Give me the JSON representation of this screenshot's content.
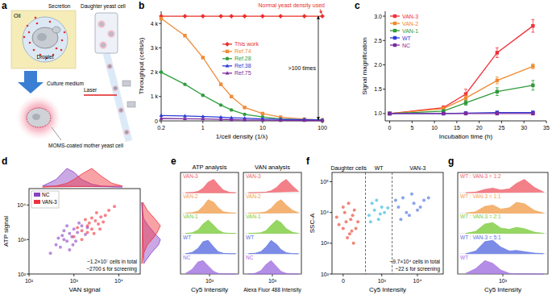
{
  "diagram": {
    "panel": "a",
    "labels": {
      "oil": "Oil",
      "secretion": "Secretion",
      "droplet": "Droplet",
      "daughter": "Daughter yeast cell",
      "medium": "Culture medium",
      "mother": "MOMS-coated mother yeast cell",
      "laser": "Laser"
    }
  },
  "chart_data": [
    {
      "panel": "b",
      "type": "line",
      "x_label": "1/cell density (1/λ)",
      "y_label": "Throughput (cells/s)",
      "log": "x",
      "xlim": [
        0.2,
        100
      ],
      "ylim": [
        0,
        4500
      ],
      "xticks": [
        0.2,
        1,
        10,
        100
      ],
      "yticks": [
        0,
        {
          "value": 1000,
          "label": "1 k"
        },
        {
          "value": 2000,
          "label": "2 k"
        },
        {
          "value": 3000,
          "label": "3 k"
        },
        {
          "value": 4000,
          "label": "4 k"
        }
      ],
      "legend": "center",
      "x": [
        0.2,
        0.5,
        1,
        2,
        3,
        5,
        10,
        20,
        50,
        100
      ],
      "series": [
        {
          "name": "This work",
          "color": "#e8302a",
          "marker": "diamond",
          "values": [
            4300,
            4300,
            4300,
            4300,
            4300,
            4300,
            4300,
            4300,
            4300,
            4300
          ]
        },
        {
          "name": "Ref.74",
          "color": "#f08c3a",
          "marker": "square",
          "values": [
            4200,
            3500,
            2600,
            1500,
            1000,
            550,
            300,
            150,
            70,
            40
          ]
        },
        {
          "name": "Ref.28",
          "color": "#2e9e3e",
          "marker": "circle",
          "values": [
            2000,
            1500,
            1050,
            650,
            450,
            270,
            160,
            80,
            40,
            20
          ]
        },
        {
          "name": "Ref.38",
          "color": "#2c3cd6",
          "marker": "triangle",
          "values": [
            220,
            200,
            180,
            150,
            130,
            110,
            80,
            60,
            50,
            40
          ]
        },
        {
          "name": "Ref.75",
          "color": "#7b2c9e",
          "marker": "triangle",
          "values": [
            100,
            90,
            80,
            60,
            50,
            40,
            30,
            20,
            15,
            10
          ]
        }
      ],
      "annotations": [
        {
          "text": "Normal yeast density used",
          "x": 100,
          "y": 4300
        },
        {
          "text": ">100 times",
          "x": 100,
          "y_from": 40,
          "y_to": 4300
        }
      ]
    },
    {
      "panel": "c",
      "type": "line",
      "x_label": "Incubation time (h)",
      "y_label": "Signal magnification",
      "xlim": [
        -1,
        35
      ],
      "ylim": [
        0.85,
        3.1
      ],
      "xticks": [
        0,
        5,
        10,
        15,
        20,
        25,
        30,
        35
      ],
      "yticks": [
        {
          "value": 1,
          "label": "1.0"
        },
        1.5,
        {
          "value": 2,
          "label": "2.0"
        },
        2.5,
        {
          "value": 3,
          "label": "3.0"
        }
      ],
      "legend": "top-left",
      "x": [
        0,
        12,
        17,
        24,
        32
      ],
      "series": [
        {
          "name": "VAN-3",
          "color": "#f0303a",
          "marker": "square",
          "values": [
            1,
            1.12,
            1.4,
            2.25,
            2.8
          ],
          "errors": [
            0.02,
            0.04,
            0.1,
            0.1,
            0.13
          ]
        },
        {
          "name": "VAN-2",
          "color": "#f08a30",
          "marker": "square",
          "values": [
            1,
            1.1,
            1.32,
            1.68,
            1.97
          ],
          "errors": [
            0.02,
            0.03,
            0.06,
            0.07,
            0.05
          ]
        },
        {
          "name": "VAN-1",
          "color": "#2f9a3a",
          "marker": "square",
          "values": [
            1,
            1.05,
            1.22,
            1.45,
            1.58
          ],
          "errors": [
            0.02,
            0.03,
            0.05,
            0.08,
            0.1
          ]
        },
        {
          "name": "WT",
          "color": "#2c3cd6",
          "marker": "square",
          "values": [
            1,
            1,
            1.01,
            1.02,
            1.02
          ],
          "errors": [
            0.01,
            0.02,
            0.02,
            0.03,
            0.03
          ]
        },
        {
          "name": "NC",
          "color": "#7b2c9e",
          "marker": "square",
          "values": [
            1,
            1,
            1,
            1,
            1
          ],
          "errors": [
            0.01,
            0.01,
            0.01,
            0.02,
            0.02
          ]
        }
      ]
    },
    {
      "panel": "d",
      "type": "scatter",
      "x_label": "VAN signal",
      "y_label": "ATP signal",
      "log": true,
      "xlim": [
        100,
        30000
      ],
      "ylim": [
        100,
        30000
      ],
      "xticks": [
        {
          "value": 100,
          "label": "10²"
        },
        {
          "value": 1000,
          "label": "10³"
        },
        {
          "value": 10000,
          "label": "10⁴"
        }
      ],
      "yticks": [
        {
          "value": 100,
          "label": "10²"
        },
        {
          "value": 1000,
          "label": "10³"
        },
        {
          "value": 10000,
          "label": "10⁴"
        }
      ],
      "legend": "top-left",
      "series": [
        {
          "name": "NC",
          "color": "#8a3fc4",
          "x": [
            300,
            400,
            500,
            600,
            700,
            800,
            900,
            1000,
            1200,
            1500,
            600,
            1100,
            2000,
            800,
            1300,
            450,
            700,
            1800,
            550,
            950
          ],
          "values": [
            400,
            700,
            600,
            1000,
            900,
            1500,
            1200,
            2000,
            1600,
            2500,
            1800,
            900,
            2200,
            500,
            3000,
            1100,
            2500,
            1400,
            1300,
            700
          ]
        },
        {
          "name": "VAN-3",
          "color": "#f0303a",
          "x": [
            1000,
            1500,
            2000,
            2500,
            3000,
            2200,
            3500,
            4000,
            5000,
            2800,
            1800,
            6000,
            3200,
            1500,
            4500,
            8000,
            2500,
            1200,
            3800,
            2000
          ],
          "values": [
            1200,
            1800,
            2500,
            2000,
            3500,
            3000,
            2800,
            4500,
            5000,
            1500,
            3800,
            7000,
            6000,
            1000,
            3200,
            9000,
            4200,
            2200,
            2000,
            1600
          ]
        }
      ],
      "density_grid": [
        200,
        400,
        700,
        1000,
        1500,
        2500,
        4000,
        7000,
        12000
      ],
      "x_density": [
        [
          0.05,
          0.4,
          1,
          0.8,
          0.4,
          0.15,
          0.05,
          0.01,
          0
        ],
        [
          0,
          0.05,
          0.2,
          0.4,
          0.7,
          1,
          0.6,
          0.2,
          0.05
        ]
      ],
      "y_density": [
        [
          0.1,
          0.5,
          0.9,
          1,
          0.7,
          0.35,
          0.1,
          0.03,
          0
        ],
        [
          0,
          0.1,
          0.3,
          0.55,
          0.8,
          1,
          0.7,
          0.3,
          0.05
        ]
      ],
      "annotations": [
        "~1.2×10⁷ cells in total",
        "~2700 s for screening"
      ]
    },
    {
      "panel": "e",
      "type": "ridgeline",
      "title": "ATP analysis",
      "x_label": "Cy5 Intensity",
      "log": "x",
      "xlim": [
        100,
        10000
      ],
      "xticks": [
        {
          "value": 1000,
          "label": "10³"
        }
      ],
      "x": [
        150,
        250,
        400,
        600,
        900,
        1400,
        2000,
        3000,
        5000,
        8000
      ],
      "series": [
        {
          "name": "VAN-3",
          "color": "#f0606a",
          "values": [
            0,
            0.02,
            0.1,
            0.35,
            0.8,
            1,
            0.6,
            0.2,
            0.03,
            0
          ]
        },
        {
          "name": "VAN-2",
          "color": "#f2a050",
          "values": [
            0,
            0.03,
            0.15,
            0.5,
            1,
            0.8,
            0.4,
            0.1,
            0.02,
            0
          ]
        },
        {
          "name": "VAN-1",
          "color": "#7ccc3c",
          "values": [
            0,
            0.05,
            0.25,
            0.7,
            1,
            0.6,
            0.25,
            0.05,
            0,
            0
          ]
        },
        {
          "name": "WT",
          "color": "#5a6ee0",
          "values": [
            0,
            0.1,
            0.4,
            0.9,
            1,
            0.5,
            0.15,
            0.03,
            0,
            0
          ]
        },
        {
          "name": "NC",
          "color": "#a070e0",
          "values": [
            0.05,
            0.35,
            0.9,
            1,
            0.6,
            0.2,
            0.05,
            0,
            0,
            0
          ]
        }
      ]
    },
    {
      "type": "ridgeline",
      "title": "VAN analysis",
      "x_label": "Alexa Fluor 488 Intensity",
      "log": "x",
      "xlim": [
        100,
        10000
      ],
      "xticks": [
        {
          "value": 1000,
          "label": "10³"
        }
      ],
      "x": [
        150,
        250,
        400,
        600,
        900,
        1400,
        2000,
        3000,
        5000,
        8000
      ],
      "series": [
        {
          "name": "VAN-3",
          "color": "#f0606a",
          "values": [
            0,
            0,
            0.02,
            0.05,
            0.15,
            0.4,
            0.75,
            1,
            0.5,
            0.1
          ]
        },
        {
          "name": "VAN-2",
          "color": "#f2a050",
          "values": [
            0,
            0,
            0.03,
            0.1,
            0.35,
            0.8,
            1,
            0.6,
            0.2,
            0.03
          ]
        },
        {
          "name": "VAN-1",
          "color": "#7ccc3c",
          "values": [
            0,
            0.02,
            0.05,
            0.2,
            0.6,
            1,
            0.8,
            0.35,
            0.08,
            0
          ]
        },
        {
          "name": "WT",
          "color": "#5a6ee0",
          "values": [
            0,
            0.03,
            0.15,
            0.5,
            1,
            0.7,
            0.3,
            0.08,
            0,
            0
          ]
        },
        {
          "name": "NC",
          "color": "#a070e0",
          "values": [
            0,
            0.05,
            0.25,
            0.7,
            1,
            0.55,
            0.2,
            0.05,
            0,
            0
          ]
        }
      ]
    },
    {
      "panel": "f",
      "type": "scatter",
      "x_label": "Cy5 Intensity",
      "y_label": "SSC-A",
      "log": true,
      "xlim": [
        -100,
        50000
      ],
      "ylim": [
        100,
        200000
      ],
      "xticks": [
        0,
        {
          "value": 1000,
          "label": "10³"
        },
        {
          "value": 10000,
          "label": "10⁴"
        }
      ],
      "yticks": [
        {
          "value": 100,
          "label": "10²"
        },
        {
          "value": 1000,
          "label": "10³"
        },
        {
          "value": 10000,
          "label": "10⁴"
        },
        {
          "value": 100000,
          "label": "10⁵"
        }
      ],
      "gates": [
        300,
        2000
      ],
      "legend": "top",
      "series": [
        {
          "name": "Daughter cells",
          "color": "#e8321e",
          "x": [
            0,
            20,
            50,
            80,
            -30,
            100,
            30,
            60,
            120,
            10,
            -50,
            150,
            40,
            90,
            0,
            70
          ],
          "values": [
            3000,
            5000,
            2000,
            8000,
            4000,
            12000,
            1500,
            6000,
            3000,
            10000,
            7000,
            5000,
            20000,
            1000,
            15000,
            2500
          ]
        },
        {
          "name": "WT",
          "color": "#1fb0d8",
          "x": [
            400,
            600,
            800,
            1000,
            500,
            1200,
            700,
            900,
            1500,
            450
          ],
          "values": [
            8000,
            12000,
            6000,
            15000,
            20000,
            10000,
            25000,
            9000,
            14000,
            5000
          ]
        },
        {
          "name": "VAN-3",
          "color": "#3a66dd",
          "x": [
            3000,
            5000,
            8000,
            4000,
            12000,
            6000,
            2500,
            15000,
            10000,
            20000,
            3500,
            7000
          ],
          "values": [
            15000,
            10000,
            20000,
            30000,
            15000,
            8000,
            25000,
            25000,
            12000,
            30000,
            6000,
            40000
          ]
        }
      ],
      "annotations": [
        "~9.7×10⁴ cells in total",
        "~22 s for screening"
      ]
    },
    {
      "panel": "g",
      "type": "ridgeline",
      "x_label": "Cy5 Intensity",
      "log": "x",
      "xlim": [
        100,
        10000
      ],
      "xticks": [
        {
          "value": 1000,
          "label": "10³"
        }
      ],
      "x": [
        150,
        250,
        400,
        600,
        900,
        1400,
        2000,
        3000,
        5000,
        8000
      ],
      "series": [
        {
          "name": "WT : VAN-3 = 1:2",
          "color": "#f0606a",
          "values": [
            0,
            0.05,
            0.25,
            0.35,
            0.2,
            0.3,
            0.7,
            1,
            0.4,
            0.05
          ]
        },
        {
          "name": "WT : VAN-3 = 1:1",
          "color": "#f2a050",
          "values": [
            0,
            0.1,
            0.5,
            0.6,
            0.3,
            0.4,
            0.8,
            0.7,
            0.2,
            0
          ]
        },
        {
          "name": "WT : VAN-3 = 2:1",
          "color": "#7ccc3c",
          "values": [
            0,
            0.15,
            0.7,
            0.8,
            0.4,
            0.3,
            0.45,
            0.35,
            0.1,
            0
          ]
        },
        {
          "name": "WT : VAN-3 = 5:1",
          "color": "#5a6ee0",
          "values": [
            0,
            0.2,
            0.9,
            1,
            0.5,
            0.2,
            0.25,
            0.15,
            0.05,
            0
          ]
        },
        {
          "name": "WT",
          "color": "#a070e0",
          "values": [
            0.05,
            0.4,
            1,
            0.8,
            0.3,
            0.05,
            0,
            0,
            0,
            0
          ]
        }
      ]
    }
  ]
}
